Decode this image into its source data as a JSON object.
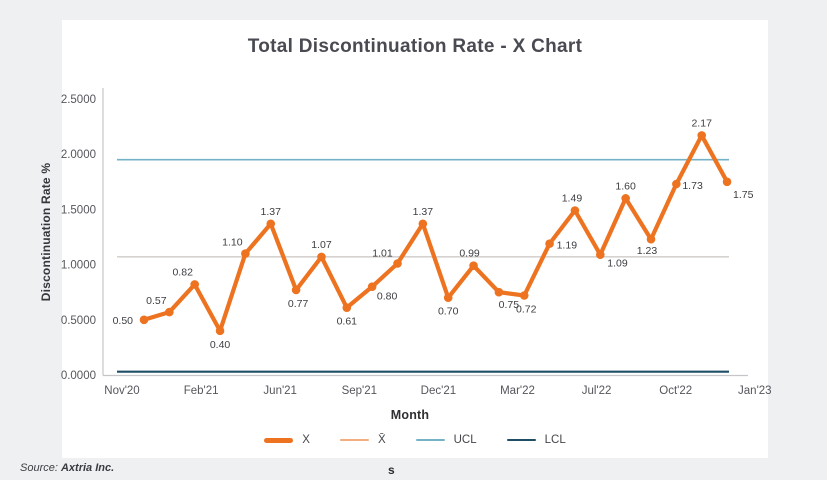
{
  "title": "Total Discontinuation Rate - X Chart",
  "footer": {
    "source_prefix": "Source:",
    "source_name": "Axtria Inc.",
    "stray_text": "s"
  },
  "chart_data": {
    "type": "line",
    "title": "Total Discontinuation Rate - X Chart",
    "xlabel": "Month",
    "ylabel": "Discontinuation Rate %",
    "ylim": [
      0,
      2.5
    ],
    "grid": false,
    "legend_position": "bottom",
    "y_ticks": [
      "0.0000",
      "0.5000",
      "1.0000",
      "1.5000",
      "2.0000",
      "2.5000"
    ],
    "y_tick_values": [
      0,
      0.5,
      1.0,
      1.5,
      2.0,
      2.5
    ],
    "x_ticks": [
      "Nov'20",
      "Feb'21",
      "Jun'21",
      "Sep'21",
      "Dec'21",
      "Mar'22",
      "Jul'22",
      "Oct'22",
      "Jan'23"
    ],
    "series": [
      {
        "name": "X",
        "kind": "data",
        "color": "#ED7320",
        "values": [
          0.5,
          0.57,
          0.82,
          0.4,
          1.1,
          1.37,
          0.77,
          1.07,
          0.61,
          0.8,
          1.01,
          1.37,
          0.7,
          0.99,
          0.75,
          0.72,
          1.19,
          1.49,
          1.09,
          1.6,
          1.23,
          1.73,
          2.17,
          1.75
        ],
        "point_labels": [
          "0.50",
          "0.57",
          "0.82",
          "0.40",
          "1.10",
          "1.37",
          "0.77",
          "1.07",
          "0.61",
          "0.80",
          "1.01",
          "1.37",
          "0.70",
          "0.99",
          "0.75",
          "0.72",
          "1.19",
          "1.49",
          "1.09",
          "1.60",
          "1.23",
          "1.73",
          "2.17",
          "1.75"
        ],
        "label_placement": [
          [
            -11,
            4,
            "end"
          ],
          [
            -13,
            -8,
            "middle"
          ],
          [
            -12,
            -9,
            "middle"
          ],
          [
            0,
            17,
            "middle"
          ],
          [
            -13,
            -8,
            "middle"
          ],
          [
            0,
            -9,
            "middle"
          ],
          [
            2,
            17,
            "middle"
          ],
          [
            0,
            -9,
            "middle"
          ],
          [
            0,
            17,
            "middle"
          ],
          [
            15,
            13,
            "middle"
          ],
          [
            -15,
            -7,
            "middle"
          ],
          [
            0,
            -9,
            "middle"
          ],
          [
            0,
            17,
            "middle"
          ],
          [
            -4,
            -9,
            "middle"
          ],
          [
            10,
            16,
            "middle"
          ],
          [
            2,
            17,
            "middle"
          ],
          [
            7,
            5,
            "start"
          ],
          [
            -3,
            -9,
            "middle"
          ],
          [
            7,
            12,
            "start"
          ],
          [
            0,
            -9,
            "middle"
          ],
          [
            -4,
            15,
            "middle"
          ],
          [
            6,
            5,
            "start"
          ],
          [
            0,
            -9,
            "middle"
          ],
          [
            6,
            16,
            "start"
          ]
        ]
      },
      {
        "name": "X̄",
        "kind": "reference",
        "legend_color": "#F3AE7D",
        "line_color": "#BDB8B4",
        "value": 1.07,
        "width": 1
      },
      {
        "name": "UCL",
        "kind": "reference",
        "legend_color": "#74B2C8",
        "line_color": "#74B2C8",
        "value": 1.95,
        "width": 1.6
      },
      {
        "name": "LCL",
        "kind": "reference",
        "legend_color": "#1E4E66",
        "line_color": "#1E4E66",
        "value": 0.03,
        "width": 2.2
      }
    ],
    "colors": {
      "axis": "#c4c6c9",
      "tick_text": "#55565c",
      "data_label_text": "#3d3e43",
      "card_bg": "#ffffff",
      "page_bg": "#eef0f2"
    }
  }
}
